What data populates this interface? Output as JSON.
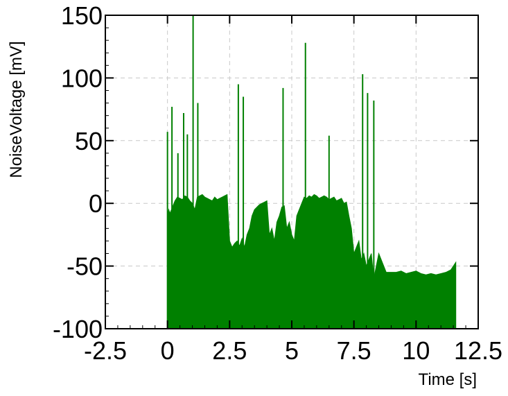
{
  "chart_data": {
    "type": "area",
    "title": "",
    "xlabel": "Time [s]",
    "ylabel": "NoiseVoltage [mV]",
    "xlim": [
      -2.5,
      12.5
    ],
    "ylim": [
      -100,
      150
    ],
    "xticks": [
      -2.5,
      0,
      2.5,
      5,
      7.5,
      10,
      12.5
    ],
    "xtick_labels": [
      "-2.5",
      "0",
      "2.5",
      "5",
      "7.5",
      "10",
      "12.5"
    ],
    "yticks": [
      -100,
      -50,
      0,
      50,
      100,
      150
    ],
    "ytick_labels": [
      "-100",
      "-50",
      "0",
      "50",
      "100",
      "150"
    ],
    "grid": true,
    "baseline": -100,
    "series": [
      {
        "color": "#008000",
        "x": [
          0.0,
          0.05,
          0.1,
          0.2,
          0.3,
          0.4,
          0.5,
          0.6,
          0.7,
          0.8,
          0.9,
          1.0,
          1.1,
          1.2,
          1.3,
          1.4,
          1.5,
          1.6,
          1.7,
          1.8,
          1.9,
          2.0,
          2.1,
          2.2,
          2.3,
          2.4,
          2.5,
          2.6,
          2.7,
          2.8,
          2.9,
          3.0,
          3.1,
          3.2,
          3.3,
          3.4,
          3.5,
          3.6,
          3.7,
          3.8,
          3.9,
          4.0,
          4.1,
          4.2,
          4.3,
          4.4,
          4.5,
          4.6,
          4.7,
          4.8,
          4.9,
          5.0,
          5.1,
          5.2,
          5.3,
          5.4,
          5.5,
          5.6,
          5.7,
          5.8,
          5.9,
          6.0,
          6.1,
          6.2,
          6.3,
          6.4,
          6.5,
          6.6,
          6.7,
          6.8,
          6.9,
          7.0,
          7.1,
          7.2,
          7.3,
          7.4,
          7.5,
          7.6,
          7.7,
          7.8,
          7.9,
          8.0,
          8.1,
          8.2,
          8.3,
          8.4,
          8.5,
          8.6,
          8.7,
          8.8,
          8.9,
          9.0,
          9.2,
          9.4,
          9.6,
          9.8,
          10.0,
          10.2,
          10.4,
          10.6,
          10.8,
          11.0,
          11.2,
          11.4,
          11.5,
          11.6
        ],
        "y": [
          -10,
          -5,
          -8,
          -3,
          2,
          5,
          4,
          3,
          6,
          5,
          2,
          0,
          -5,
          5,
          6,
          7,
          5,
          4,
          3,
          2,
          5,
          3,
          4,
          5,
          6,
          7,
          -30,
          -35,
          -32,
          -30,
          -34,
          -28,
          -35,
          -25,
          -20,
          -10,
          -5,
          -3,
          -1,
          0,
          1,
          2,
          -25,
          -20,
          -30,
          -15,
          -10,
          -3,
          -2,
          -20,
          -15,
          -25,
          -30,
          -10,
          -5,
          0,
          5,
          4,
          6,
          5,
          7,
          6,
          4,
          5,
          6,
          5,
          3,
          4,
          5,
          2,
          3,
          4,
          0,
          1,
          -10,
          -20,
          -40,
          -35,
          -30,
          -45,
          -40,
          -50,
          -45,
          -40,
          -60,
          -50,
          -40,
          -45,
          -50,
          -55,
          -55,
          -55,
          -55,
          -54,
          -56,
          -55,
          -54,
          -56,
          -57,
          -56,
          -57,
          -56,
          -55,
          -53,
          -50,
          -47
        ]
      }
    ],
    "spikes": [
      {
        "x": 0.0,
        "y": 57
      },
      {
        "x": 0.18,
        "y": 77
      },
      {
        "x": 0.42,
        "y": 40
      },
      {
        "x": 0.65,
        "y": 72
      },
      {
        "x": 0.8,
        "y": 55
      },
      {
        "x": 1.03,
        "y": 150
      },
      {
        "x": 1.22,
        "y": 80
      },
      {
        "x": 2.85,
        "y": 95
      },
      {
        "x": 3.05,
        "y": 85
      },
      {
        "x": 4.65,
        "y": 92
      },
      {
        "x": 5.55,
        "y": 128
      },
      {
        "x": 6.5,
        "y": 54
      },
      {
        "x": 7.85,
        "y": 103
      },
      {
        "x": 8.05,
        "y": 88
      },
      {
        "x": 8.3,
        "y": 82
      }
    ]
  }
}
